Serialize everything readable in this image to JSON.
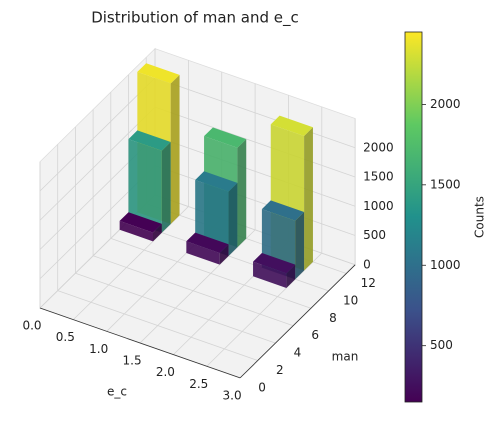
{
  "chart_data": {
    "type": "bar3d",
    "title": "Distribution of man and e_c",
    "xlabel": "e_c",
    "ylabel": "man",
    "colorbar_label": "Counts",
    "x": [
      0,
      1,
      2
    ],
    "series": [
      {
        "man": 11,
        "values": [
          2400,
          1700,
          2300
        ]
      },
      {
        "man": 10,
        "values": [
          1400,
          1100,
          1000
        ]
      },
      {
        "man": 9,
        "values": [
          150,
          200,
          250
        ]
      }
    ],
    "xlim": [
      0,
      3
    ],
    "ylim": [
      0,
      13
    ],
    "zlim": [
      0,
      2500
    ],
    "xticks": [
      {
        "value": 0,
        "label": "0.0"
      },
      {
        "value": 0.5,
        "label": "0.5"
      },
      {
        "value": 1,
        "label": "1.0"
      },
      {
        "value": 1.5,
        "label": "1.5"
      },
      {
        "value": 2,
        "label": "2.0"
      },
      {
        "value": 2.5,
        "label": "2.5"
      },
      {
        "value": 3,
        "label": "3.0"
      }
    ],
    "yticks": [
      0,
      2,
      4,
      6,
      8,
      10,
      12
    ],
    "zticks": [
      0,
      500,
      1000,
      1500,
      2000
    ],
    "clim": [
      150,
      2450
    ],
    "cticks": [
      500,
      1000,
      1500,
      2000
    ],
    "colormap": "viridis",
    "grid": true
  }
}
